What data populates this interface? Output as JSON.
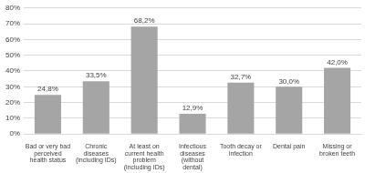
{
  "chart_data": {
    "type": "bar",
    "categories": [
      "Bad or very bad perceived health status",
      "Chronic diseases (including IDs)",
      "At least on current health problem (including IDs)",
      "Infectious diseases (without dental)",
      "Tooth decay or infection",
      "Dental pain",
      "Missing or broken teeth"
    ],
    "values": [
      24.8,
      33.5,
      68.2,
      12.9,
      32.7,
      30.0,
      42.0
    ],
    "value_labels": [
      "24,8%",
      "33,5%",
      "68,2%",
      "12,9%",
      "32,7%",
      "30,0%",
      "42,0%"
    ],
    "color": "#a5a5a5",
    "ylim": [
      0,
      80
    ],
    "yticks": [
      {
        "value": 0,
        "label": "0%"
      },
      {
        "value": 10,
        "label": "10%"
      },
      {
        "value": 20,
        "label": "20%"
      },
      {
        "value": 30,
        "label": "30%"
      },
      {
        "value": 40,
        "label": "40%"
      },
      {
        "value": 50,
        "label": "50%"
      },
      {
        "value": 60,
        "label": "60%"
      },
      {
        "value": 70,
        "label": "70%"
      },
      {
        "value": 80,
        "label": "80%"
      }
    ],
    "grid": true,
    "data_labels": true
  }
}
